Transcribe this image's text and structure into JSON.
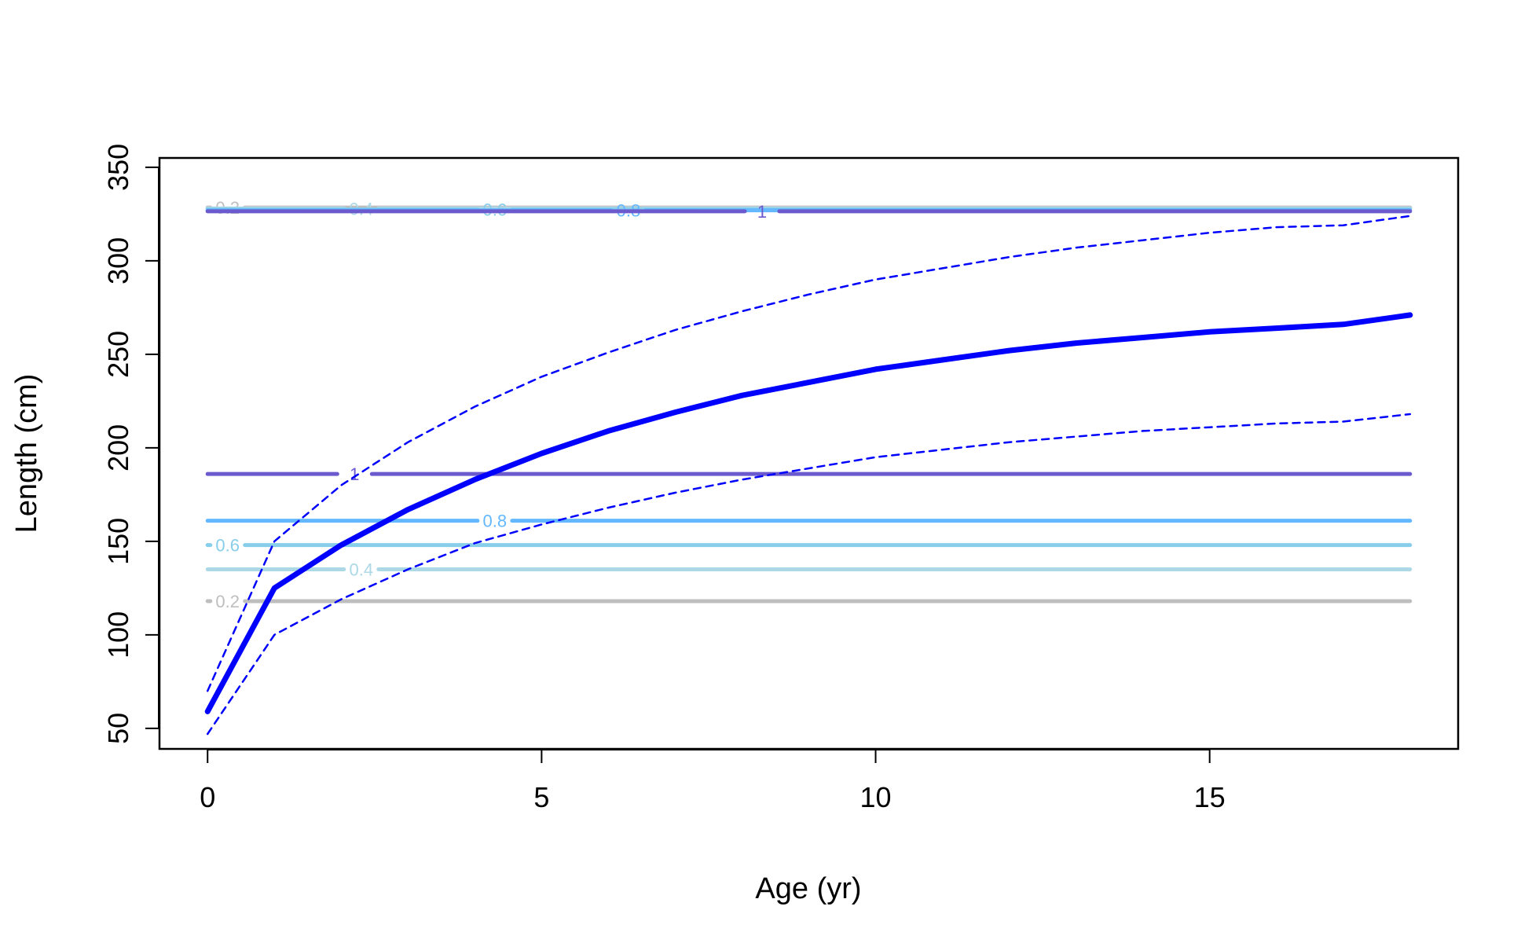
{
  "chart_data": {
    "type": "line",
    "title": "",
    "xlabel": "Age (yr)",
    "ylabel": "Length (cm)",
    "xlim": [
      -0.72,
      18.72
    ],
    "ylim": [
      39,
      355
    ],
    "xticks": [
      0,
      5,
      10,
      15
    ],
    "yticks": [
      50,
      100,
      150,
      200,
      250,
      300,
      350
    ],
    "grid": false,
    "legend": "none",
    "series": [
      {
        "role": "mean",
        "style": "solid-thick",
        "color": "#0000FF",
        "x": [
          0,
          1,
          2,
          3,
          4,
          5,
          6,
          7,
          8,
          9,
          10,
          11,
          12,
          13,
          14,
          15,
          16,
          17,
          18
        ],
        "y": [
          59,
          125,
          148,
          167,
          183,
          197,
          209,
          219,
          228,
          235,
          242,
          247,
          252,
          256,
          259,
          262,
          264,
          266,
          271
        ]
      },
      {
        "role": "upper",
        "style": "dashed",
        "color": "#0000FF",
        "x": [
          0,
          1,
          2,
          3,
          4,
          5,
          6,
          7,
          8,
          9,
          10,
          11,
          12,
          13,
          14,
          15,
          16,
          17,
          18
        ],
        "y": [
          70,
          150,
          180,
          203,
          222,
          238,
          251,
          263,
          273,
          282,
          290,
          296,
          302,
          307,
          311,
          315,
          318,
          319,
          324
        ]
      },
      {
        "role": "lower",
        "style": "dashed",
        "color": "#0000FF",
        "x": [
          0,
          1,
          2,
          3,
          4,
          5,
          6,
          7,
          8,
          9,
          10,
          11,
          12,
          13,
          14,
          15,
          16,
          17,
          18
        ],
        "y": [
          47,
          100,
          119,
          135,
          149,
          159,
          168,
          176,
          183,
          189,
          195,
          199,
          203,
          206,
          209,
          211,
          213,
          214,
          218
        ]
      }
    ],
    "reference_lines": [
      {
        "y": 328.5,
        "label": "0.2",
        "label_x": 0.3,
        "color": "#BEBEBE"
      },
      {
        "y": 328.0,
        "label": "0.4",
        "label_x": 2.3,
        "color": "#ADD8E6"
      },
      {
        "y": 327.5,
        "label": "0.6",
        "label_x": 4.3,
        "color": "#87CEEB"
      },
      {
        "y": 327.0,
        "label": "0.8",
        "label_x": 6.3,
        "color": "#63B8FF"
      },
      {
        "y": 326.5,
        "label": "1",
        "label_x": 8.3,
        "color": "#6A5ACD"
      },
      {
        "y": 118,
        "label": "0.2",
        "label_x": 0.3,
        "color": "#BEBEBE"
      },
      {
        "y": 135,
        "label": "0.4",
        "label_x": 2.3,
        "color": "#ADD8E6"
      },
      {
        "y": 148,
        "label": "0.6",
        "label_x": 0.3,
        "color": "#87CEEB"
      },
      {
        "y": 161,
        "label": "0.8",
        "label_x": 4.3,
        "color": "#63B8FF"
      },
      {
        "y": 186,
        "label": "1",
        "label_x": 2.2,
        "color": "#6A5ACD"
      }
    ]
  }
}
